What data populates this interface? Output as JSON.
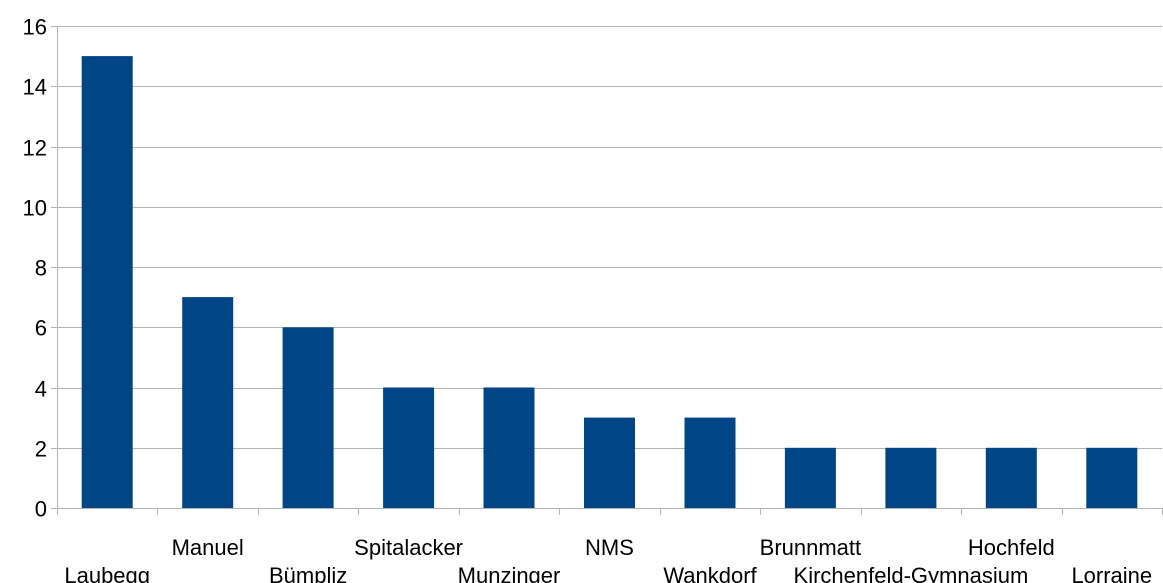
{
  "chart_data": {
    "type": "bar",
    "categories": [
      "Laubegg",
      "Manuel",
      "Bümpliz",
      "Spitalacker",
      "Munzinger",
      "NMS",
      "Wankdorf",
      "Brunnmatt",
      "Kirchenfeld-Gymnasium",
      "Hochfeld",
      "Lorraine"
    ],
    "values": [
      15,
      7,
      6,
      4,
      4,
      3,
      3,
      2,
      2,
      2,
      2
    ],
    "xlabel": "",
    "ylabel": "",
    "ylim": [
      0,
      16
    ],
    "yticks": [
      0,
      2,
      4,
      6,
      8,
      10,
      12,
      14,
      16
    ],
    "grid": true,
    "legend": "none",
    "colors": {
      "bar": "#004586",
      "grid": "#b3b3b3",
      "axis": "#b3b3b3"
    }
  }
}
